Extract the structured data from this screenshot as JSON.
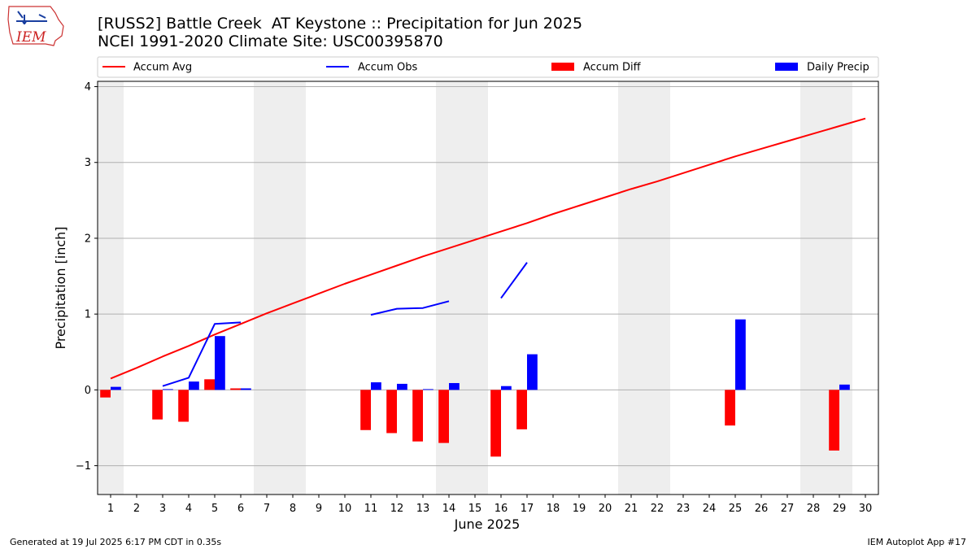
{
  "logo": {
    "text": "IEM"
  },
  "chart_data": {
    "type": "bar+line",
    "title": "[RUSS2] Battle Creek  AT Keystone :: Precipitation for Jun 2025",
    "subtitle": "NCEI 1991-2020 Climate Site: USC00395870",
    "xlabel": "June 2025",
    "ylabel": "Precipitation [inch]",
    "ylim": [
      -1.38,
      4.07
    ],
    "xlim": [
      0.5,
      30.5
    ],
    "y_ticks": [
      -1,
      0,
      1,
      2,
      3,
      4
    ],
    "y_tick_labels": [
      "−1",
      "0",
      "1",
      "2",
      "3",
      "4"
    ],
    "x_ticks": [
      1,
      2,
      3,
      4,
      5,
      6,
      7,
      8,
      9,
      10,
      11,
      12,
      13,
      14,
      15,
      16,
      17,
      18,
      19,
      20,
      21,
      22,
      23,
      24,
      25,
      26,
      27,
      28,
      29,
      30
    ],
    "weekend_shading": [
      [
        0.5,
        1.5
      ],
      [
        6.5,
        8.5
      ],
      [
        13.5,
        15.5
      ],
      [
        20.5,
        22.5
      ],
      [
        27.5,
        29.5
      ]
    ],
    "grid": true,
    "legend": {
      "placement": "top",
      "entries": [
        {
          "label": "Accum Avg",
          "kind": "line",
          "color": "#ff0000"
        },
        {
          "label": "Accum Obs",
          "kind": "line",
          "color": "#0000ff"
        },
        {
          "label": "Accum Diff",
          "kind": "bar",
          "color": "#ff0000"
        },
        {
          "label": "Daily Precip",
          "kind": "bar",
          "color": "#0000ff"
        }
      ]
    },
    "series": [
      {
        "name": "Accum Avg",
        "kind": "line",
        "color": "#ff0000",
        "days": [
          1,
          2,
          3,
          4,
          5,
          6,
          7,
          8,
          9,
          10,
          11,
          12,
          13,
          14,
          15,
          16,
          17,
          18,
          19,
          20,
          21,
          22,
          23,
          24,
          25,
          26,
          27,
          28,
          29,
          30
        ],
        "values": [
          0.15,
          0.29,
          0.44,
          0.58,
          0.73,
          0.87,
          1.01,
          1.14,
          1.27,
          1.4,
          1.52,
          1.64,
          1.76,
          1.87,
          1.98,
          2.09,
          2.2,
          2.32,
          2.43,
          2.54,
          2.65,
          2.75,
          2.86,
          2.97,
          3.08,
          3.18,
          3.28,
          3.38,
          3.48,
          3.58
        ]
      },
      {
        "name": "Accum Obs",
        "kind": "line",
        "color": "#0000ff",
        "segments": [
          {
            "days": [
              3,
              4,
              5,
              6
            ],
            "values": [
              0.05,
              0.16,
              0.87,
              0.89
            ]
          },
          {
            "days": [
              11,
              12,
              13,
              14
            ],
            "values": [
              0.99,
              1.07,
              1.08,
              1.17
            ]
          },
          {
            "days": [
              16,
              17
            ],
            "values": [
              1.21,
              1.68
            ]
          }
        ]
      },
      {
        "name": "Accum Diff",
        "kind": "bar",
        "color": "#ff0000",
        "days": [
          1,
          3,
          4,
          5,
          6,
          11,
          12,
          13,
          14,
          16,
          17,
          25,
          29
        ],
        "values": [
          -0.1,
          -0.39,
          -0.42,
          0.14,
          0.02,
          -0.53,
          -0.57,
          -0.68,
          -0.7,
          -0.88,
          -0.52,
          -0.47,
          -0.8
        ]
      },
      {
        "name": "Daily Precip",
        "kind": "bar",
        "color": "#0000ff",
        "days": [
          1,
          3,
          4,
          5,
          6,
          11,
          12,
          13,
          14,
          16,
          17,
          25,
          29
        ],
        "values": [
          0.04,
          0.01,
          0.11,
          0.71,
          0.02,
          0.1,
          0.08,
          0.01,
          0.09,
          0.05,
          0.47,
          0.93,
          0.07
        ]
      }
    ]
  },
  "footer": {
    "generated": "Generated at 19 Jul 2025 6:17 PM CDT in 0.35s",
    "app": "IEM Autoplot App #17"
  }
}
